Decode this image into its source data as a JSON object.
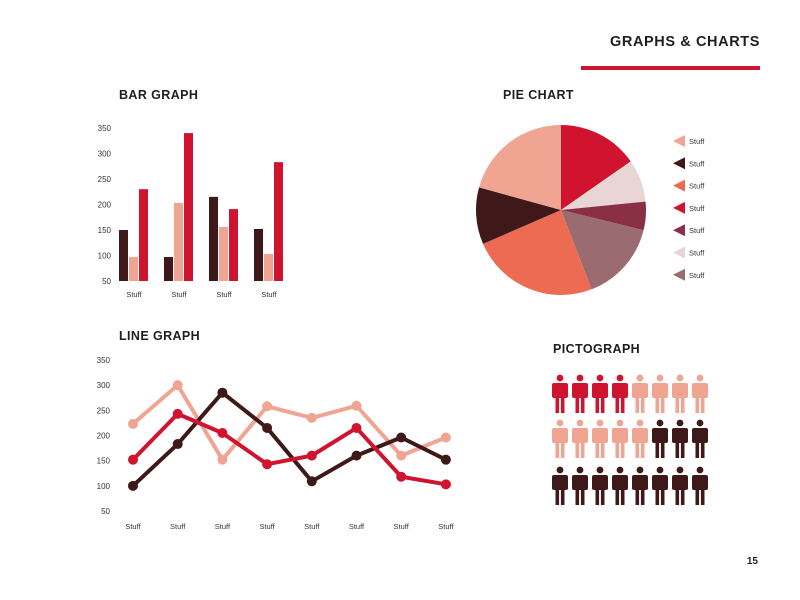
{
  "header": {
    "title": "GRAPHS & CHARTS"
  },
  "footer": {
    "page_number": "15"
  },
  "colors": {
    "dark_brown": "#3f1919",
    "salmon": "#f0a593",
    "red": "#d0142f",
    "coral": "#ee6b53",
    "plum": "#8a3044",
    "pale_pink": "#e9d5d3",
    "mauve": "#9a6c72",
    "accent_rule": "#d0142f"
  },
  "chart_data": [
    {
      "type": "bar",
      "title": "BAR GRAPH",
      "categories": [
        "Stuff",
        "Stuff",
        "Stuff",
        "Stuff"
      ],
      "yticks": [
        50,
        100,
        150,
        200,
        250,
        300,
        350
      ],
      "ylim": [
        50,
        355
      ],
      "series": [
        {
          "color": "#3f1919",
          "values": [
            150,
            97,
            215,
            152
          ]
        },
        {
          "color": "#f0a593",
          "values": [
            97,
            203,
            156,
            103
          ]
        },
        {
          "color": "#d0142f",
          "values": [
            230,
            340,
            191,
            283
          ]
        }
      ]
    },
    {
      "type": "pie",
      "title": "PIE CHART",
      "legend_position": "right",
      "slices": [
        {
          "label": "Stuff",
          "value": 17,
          "color": "#d0142f"
        },
        {
          "label": "Stuff",
          "value": 9,
          "color": "#e9d5d3"
        },
        {
          "label": "Stuff",
          "value": 6,
          "color": "#8a3044"
        },
        {
          "label": "Stuff",
          "value": 17,
          "color": "#9a6c72"
        },
        {
          "label": "Stuff",
          "value": 27,
          "color": "#ee6b53"
        },
        {
          "label": "Stuff",
          "value": 12,
          "color": "#3f1919"
        },
        {
          "label": "Stuff",
          "value": 23,
          "color": "#f0a593"
        }
      ],
      "legend": [
        {
          "label": "Stuff",
          "color": "#f0a593"
        },
        {
          "label": "Stuff",
          "color": "#3f1919"
        },
        {
          "label": "Stuff",
          "color": "#ee6b53"
        },
        {
          "label": "Stuff",
          "color": "#d0142f"
        },
        {
          "label": "Stuff",
          "color": "#8a3044"
        },
        {
          "label": "Stuff",
          "color": "#e9d5d3"
        },
        {
          "label": "Stuff",
          "color": "#9a6c72"
        }
      ]
    },
    {
      "type": "line",
      "title": "LINE GRAPH",
      "categories": [
        "Stuff",
        "Stuff",
        "Stuff",
        "Stuff",
        "Stuff",
        "Stuff",
        "Stuff",
        "Stuff"
      ],
      "yticks": [
        50,
        100,
        150,
        200,
        250,
        300,
        350
      ],
      "ylim": [
        50,
        350
      ],
      "series": [
        {
          "color": "#f0a593",
          "values": [
            223,
            300,
            152,
            258,
            235,
            259,
            160,
            196
          ]
        },
        {
          "color": "#3f1919",
          "values": [
            100,
            183,
            285,
            215,
            109,
            160,
            196,
            152
          ]
        },
        {
          "color": "#d0142f",
          "values": [
            152,
            243,
            205,
            143,
            160,
            215,
            118,
            103
          ]
        }
      ]
    },
    {
      "type": "pictograph",
      "title": "PICTOGRAPH",
      "columns": 8,
      "rows": [
        [
          {
            "count": 4,
            "color": "#d0142f"
          },
          {
            "count": 4,
            "color": "#f0a593"
          }
        ],
        [
          {
            "count": 5,
            "color": "#f0a593"
          },
          {
            "count": 3,
            "color": "#3f1919"
          }
        ],
        [
          {
            "count": 8,
            "color": "#3f1919"
          }
        ]
      ],
      "icon": "person-icon"
    }
  ]
}
